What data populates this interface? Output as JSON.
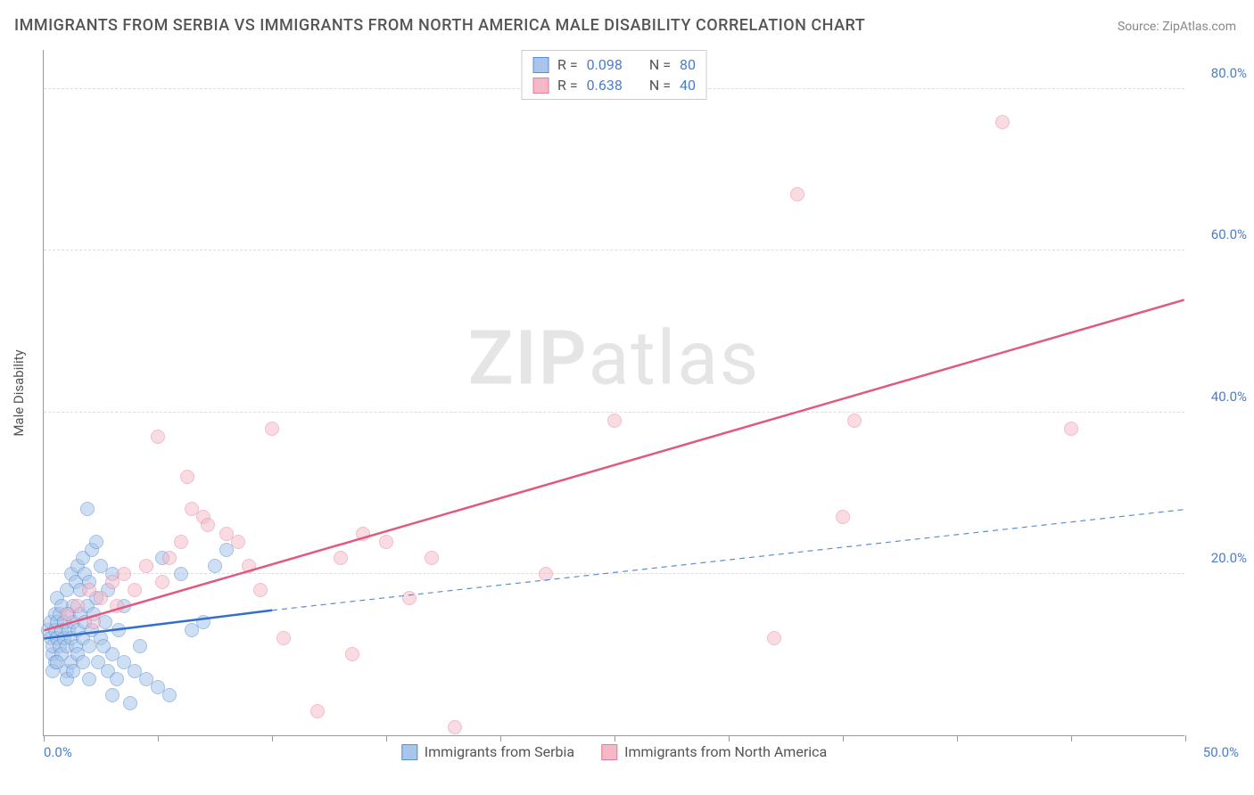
{
  "title": "IMMIGRANTS FROM SERBIA VS IMMIGRANTS FROM NORTH AMERICA MALE DISABILITY CORRELATION CHART",
  "source": "Source: ZipAtlas.com",
  "watermark_bold": "ZIP",
  "watermark_rest": "atlas",
  "y_axis_label": "Male Disability",
  "chart": {
    "type": "scatter",
    "xlim": [
      0,
      50
    ],
    "ylim": [
      0,
      85
    ],
    "x_ticks": [
      0,
      5,
      10,
      15,
      20,
      25,
      30,
      35,
      40,
      45,
      50
    ],
    "x_tick_labels": {
      "0": "0.0%",
      "50": "50.0%"
    },
    "y_ticks": [
      20,
      40,
      60,
      80
    ],
    "y_tick_labels": {
      "20": "20.0%",
      "40": "40.0%",
      "60": "60.0%",
      "80": "80.0%"
    },
    "background_color": "#ffffff",
    "grid_color": "#dddddd",
    "axis_color": "#999999",
    "tick_label_color": "#4a7ec9",
    "point_radius": 8,
    "series": [
      {
        "name": "Immigrants from Serbia",
        "fill": "#a8c5eb",
        "stroke": "#5b8fd1",
        "fill_opacity": 0.55,
        "R": "0.098",
        "N": "80",
        "trend_solid": {
          "x1": 0,
          "y1": 12,
          "x2": 10,
          "y2": 15.5,
          "width": 2.5,
          "color": "#3470c9"
        },
        "trend_dashed": {
          "x1": 10,
          "y1": 15.5,
          "x2": 50,
          "y2": 28,
          "width": 1.2,
          "color": "#5b8fd1",
          "dash": "6,5"
        },
        "points": [
          [
            0.2,
            13
          ],
          [
            0.3,
            12
          ],
          [
            0.3,
            14
          ],
          [
            0.4,
            10
          ],
          [
            0.4,
            11
          ],
          [
            0.5,
            15
          ],
          [
            0.5,
            9
          ],
          [
            0.5,
            13
          ],
          [
            0.6,
            12
          ],
          [
            0.6,
            14
          ],
          [
            0.6,
            17
          ],
          [
            0.7,
            11
          ],
          [
            0.7,
            15
          ],
          [
            0.8,
            10
          ],
          [
            0.8,
            13
          ],
          [
            0.8,
            16
          ],
          [
            0.9,
            12
          ],
          [
            0.9,
            14
          ],
          [
            1.0,
            11
          ],
          [
            1.0,
            18
          ],
          [
            1.0,
            8
          ],
          [
            1.1,
            13
          ],
          [
            1.1,
            15
          ],
          [
            1.2,
            9
          ],
          [
            1.2,
            12
          ],
          [
            1.2,
            20
          ],
          [
            1.3,
            14
          ],
          [
            1.3,
            16
          ],
          [
            1.4,
            11
          ],
          [
            1.4,
            19
          ],
          [
            1.5,
            13
          ],
          [
            1.5,
            21
          ],
          [
            1.5,
            10
          ],
          [
            1.6,
            15
          ],
          [
            1.6,
            18
          ],
          [
            1.7,
            12
          ],
          [
            1.7,
            22
          ],
          [
            1.8,
            14
          ],
          [
            1.8,
            20
          ],
          [
            1.9,
            16
          ],
          [
            1.9,
            28
          ],
          [
            2.0,
            11
          ],
          [
            2.0,
            19
          ],
          [
            2.1,
            13
          ],
          [
            2.1,
            23
          ],
          [
            2.2,
            15
          ],
          [
            2.3,
            17
          ],
          [
            2.4,
            9
          ],
          [
            2.5,
            12
          ],
          [
            2.5,
            21
          ],
          [
            2.7,
            14
          ],
          [
            2.8,
            8
          ],
          [
            2.8,
            18
          ],
          [
            3.0,
            10
          ],
          [
            3.0,
            20
          ],
          [
            3.2,
            7
          ],
          [
            3.3,
            13
          ],
          [
            3.5,
            9
          ],
          [
            3.5,
            16
          ],
          [
            3.8,
            4
          ],
          [
            4.0,
            8
          ],
          [
            4.2,
            11
          ],
          [
            4.5,
            7
          ],
          [
            5.0,
            6
          ],
          [
            5.2,
            22
          ],
          [
            5.5,
            5
          ],
          [
            6.0,
            20
          ],
          [
            6.5,
            13
          ],
          [
            7.0,
            14
          ],
          [
            7.5,
            21
          ],
          [
            8.0,
            23
          ],
          [
            1.0,
            7
          ],
          [
            1.3,
            8
          ],
          [
            2.0,
            7
          ],
          [
            2.3,
            24
          ],
          [
            0.4,
            8
          ],
          [
            0.6,
            9
          ],
          [
            3.0,
            5
          ],
          [
            2.6,
            11
          ],
          [
            1.7,
            9
          ]
        ]
      },
      {
        "name": "Immigrants from North America",
        "fill": "#f4b8c7",
        "stroke": "#e87b9b",
        "fill_opacity": 0.5,
        "R": "0.638",
        "N": "40",
        "trend_solid": {
          "x1": 0,
          "y1": 13,
          "x2": 50,
          "y2": 54,
          "width": 2.5,
          "color": "#e05a80"
        },
        "points": [
          [
            1.0,
            15
          ],
          [
            1.5,
            16
          ],
          [
            2.0,
            18
          ],
          [
            2.2,
            14
          ],
          [
            2.5,
            17
          ],
          [
            3.0,
            19
          ],
          [
            3.2,
            16
          ],
          [
            3.5,
            20
          ],
          [
            4.0,
            18
          ],
          [
            4.5,
            21
          ],
          [
            5.0,
            37
          ],
          [
            5.2,
            19
          ],
          [
            5.5,
            22
          ],
          [
            6.0,
            24
          ],
          [
            6.3,
            32
          ],
          [
            6.5,
            28
          ],
          [
            7.0,
            27
          ],
          [
            7.2,
            26
          ],
          [
            8.0,
            25
          ],
          [
            8.5,
            24
          ],
          [
            9.0,
            21
          ],
          [
            9.5,
            18
          ],
          [
            10.0,
            38
          ],
          [
            10.5,
            12
          ],
          [
            13.0,
            22
          ],
          [
            13.5,
            10
          ],
          [
            14.0,
            25
          ],
          [
            15.0,
            24
          ],
          [
            16.0,
            17
          ],
          [
            17.0,
            22
          ],
          [
            18.0,
            1
          ],
          [
            22.0,
            20
          ],
          [
            25.0,
            39
          ],
          [
            32.0,
            12
          ],
          [
            33.0,
            67
          ],
          [
            35.0,
            27
          ],
          [
            35.5,
            39
          ],
          [
            42.0,
            76
          ],
          [
            45.0,
            38
          ],
          [
            12.0,
            3
          ]
        ]
      }
    ]
  },
  "legend_top": [
    {
      "swatch_fill": "#a8c5eb",
      "swatch_stroke": "#5b8fd1",
      "R_label": "R =",
      "R_val": "0.098",
      "N_label": "N =",
      "N_val": "80"
    },
    {
      "swatch_fill": "#f4b8c7",
      "swatch_stroke": "#e87b9b",
      "R_label": "R =",
      "R_val": "0.638",
      "N_label": "N =",
      "N_val": "40"
    }
  ],
  "legend_bottom": [
    {
      "swatch_fill": "#a8c5eb",
      "swatch_stroke": "#5b8fd1",
      "label": "Immigrants from Serbia"
    },
    {
      "swatch_fill": "#f4b8c7",
      "swatch_stroke": "#e87b9b",
      "label": "Immigrants from North America"
    }
  ]
}
